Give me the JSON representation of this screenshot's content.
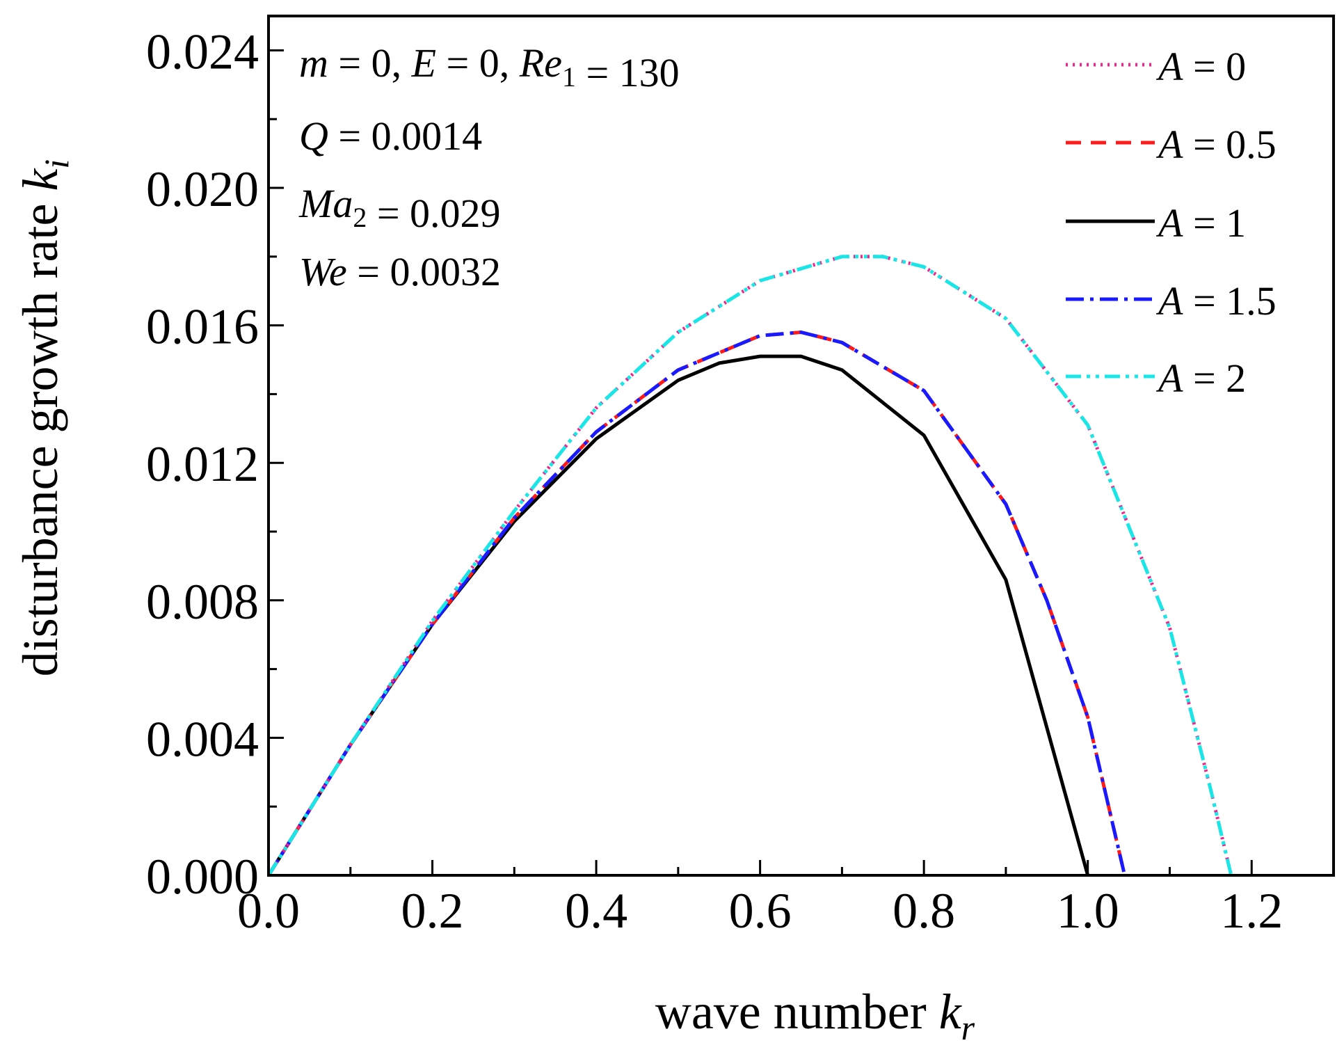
{
  "chart_data": {
    "type": "line",
    "title": "",
    "xlabel": {
      "text": "wave number ",
      "var": "k",
      "sub": "r"
    },
    "ylabel": {
      "text": "disturbance growth rate ",
      "var": "k",
      "sub": "i"
    },
    "xlim": [
      0,
      1.3
    ],
    "ylim": [
      0,
      0.025
    ],
    "xticks": [
      0,
      0.2,
      0.4,
      0.6,
      0.8,
      1.0,
      1.2
    ],
    "xtick_labels": [
      "0.0",
      "0.2",
      "0.4",
      "0.6",
      "0.8",
      "1.0",
      "1.2"
    ],
    "xminor_step": 0.1,
    "yticks": [
      0,
      0.004,
      0.008,
      0.012,
      0.016,
      0.02,
      0.024
    ],
    "ytick_labels": [
      "0.000",
      "0.004",
      "0.008",
      "0.012",
      "0.016",
      "0.020",
      "0.024"
    ],
    "yminor_step": 0.002,
    "legend_position": "top-right",
    "annotations": [
      {
        "name": "params-line-1",
        "parts": [
          {
            "t": "m",
            "i": true
          },
          {
            "t": " = 0, "
          },
          {
            "t": "E",
            "i": true
          },
          {
            "t": " = 0, "
          },
          {
            "t": "Re",
            "i": true
          },
          {
            "t": "1",
            "sub": true
          },
          {
            "t": " = 130"
          }
        ]
      },
      {
        "name": "params-line-2",
        "parts": [
          {
            "t": "Q",
            "i": true
          },
          {
            "t": " = 0.0014"
          }
        ]
      },
      {
        "name": "params-line-3",
        "parts": [
          {
            "t": "Ma",
            "i": true
          },
          {
            "t": "2",
            "sub": true
          },
          {
            "t": " = 0.029"
          }
        ]
      },
      {
        "name": "params-line-4",
        "parts": [
          {
            "t": "We",
            "i": true
          },
          {
            "t": " = 0.0032"
          }
        ]
      }
    ],
    "series": [
      {
        "name": "A = 0",
        "var": "A",
        "value": " = 0",
        "color": "#e8288c",
        "dash": "3,7",
        "x": [
          0,
          0.1,
          0.2,
          0.3,
          0.4,
          0.5,
          0.6,
          0.7,
          0.75,
          0.8,
          0.9,
          1.0,
          1.1,
          1.15,
          1.175
        ],
        "y": [
          0,
          0.0038,
          0.0074,
          0.0106,
          0.0136,
          0.0158,
          0.0173,
          0.018,
          0.018,
          0.0177,
          0.0162,
          0.0131,
          0.0072,
          0.0025,
          0
        ]
      },
      {
        "name": "A = 0.5",
        "var": "A",
        "value": " = 0.5",
        "color": "#ff1a1a",
        "dash": "22,14",
        "x": [
          0,
          0.1,
          0.2,
          0.3,
          0.4,
          0.5,
          0.55,
          0.6,
          0.65,
          0.7,
          0.8,
          0.9,
          0.95,
          1.0,
          1.045
        ],
        "y": [
          0,
          0.0038,
          0.0073,
          0.0104,
          0.0129,
          0.0147,
          0.0152,
          0.0157,
          0.0158,
          0.0155,
          0.0141,
          0.0108,
          0.008,
          0.0046,
          0
        ]
      },
      {
        "name": "A = 1",
        "var": "A",
        "value": " = 1",
        "color": "#000000",
        "dash": "",
        "x": [
          0,
          0.1,
          0.2,
          0.3,
          0.4,
          0.5,
          0.55,
          0.6,
          0.65,
          0.7,
          0.8,
          0.9,
          1.0
        ],
        "y": [
          0,
          0.0038,
          0.0073,
          0.0103,
          0.0127,
          0.0144,
          0.0149,
          0.0151,
          0.0151,
          0.0147,
          0.0128,
          0.0086,
          0
        ]
      },
      {
        "name": "A = 1.5",
        "var": "A",
        "value": " = 1.5",
        "color": "#1a1aff",
        "dash": "26,9,5,9",
        "x": [
          0,
          0.1,
          0.2,
          0.3,
          0.4,
          0.5,
          0.55,
          0.6,
          0.65,
          0.7,
          0.8,
          0.9,
          0.95,
          1.0,
          1.045
        ],
        "y": [
          0,
          0.0038,
          0.0073,
          0.0104,
          0.0129,
          0.0147,
          0.0152,
          0.0157,
          0.0158,
          0.0155,
          0.0141,
          0.0108,
          0.008,
          0.0046,
          0
        ]
      },
      {
        "name": "A = 2",
        "var": "A",
        "value": " = 2",
        "color": "#19e6e6",
        "dash": "22,8,5,8,5,8",
        "x": [
          0,
          0.1,
          0.2,
          0.3,
          0.4,
          0.5,
          0.6,
          0.7,
          0.75,
          0.8,
          0.9,
          1.0,
          1.1,
          1.15,
          1.175
        ],
        "y": [
          0,
          0.0038,
          0.0074,
          0.0106,
          0.0136,
          0.0158,
          0.0173,
          0.018,
          0.018,
          0.0177,
          0.0162,
          0.0131,
          0.0072,
          0.0025,
          0
        ]
      }
    ]
  }
}
